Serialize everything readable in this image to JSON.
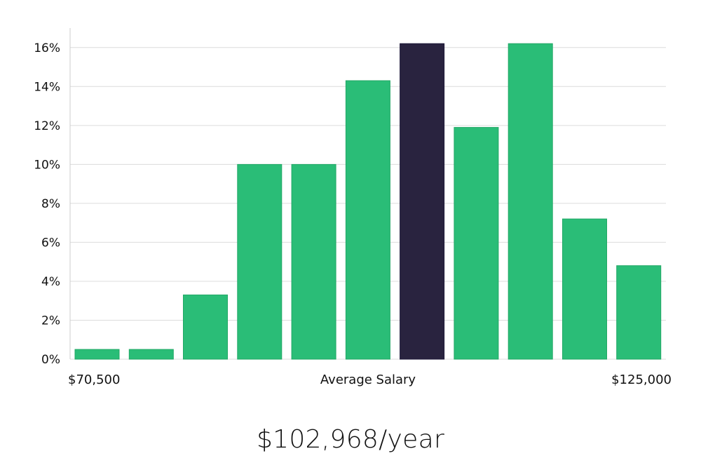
{
  "salary_summary": "$102,968/year",
  "colors": {
    "bar": "#2abd77",
    "highlight": "#29233f",
    "grid": "#dcdcdc",
    "axis": "#cccccc",
    "text": "#111111"
  },
  "chart_data": {
    "type": "bar",
    "title": "",
    "xlabel": "Average Salary",
    "ylabel": "",
    "x_range_labels": [
      "$70,500",
      "$125,000"
    ],
    "values": [
      0.5,
      0.5,
      3.3,
      10.0,
      10.0,
      14.3,
      16.2,
      11.9,
      16.2,
      7.2,
      4.8
    ],
    "highlight_index": 6,
    "y_ticks": [
      "0%",
      "2%",
      "4%",
      "6%",
      "8%",
      "10%",
      "12%",
      "14%",
      "16%"
    ],
    "ylim": [
      0,
      17
    ],
    "grid": true,
    "legend": "none"
  }
}
